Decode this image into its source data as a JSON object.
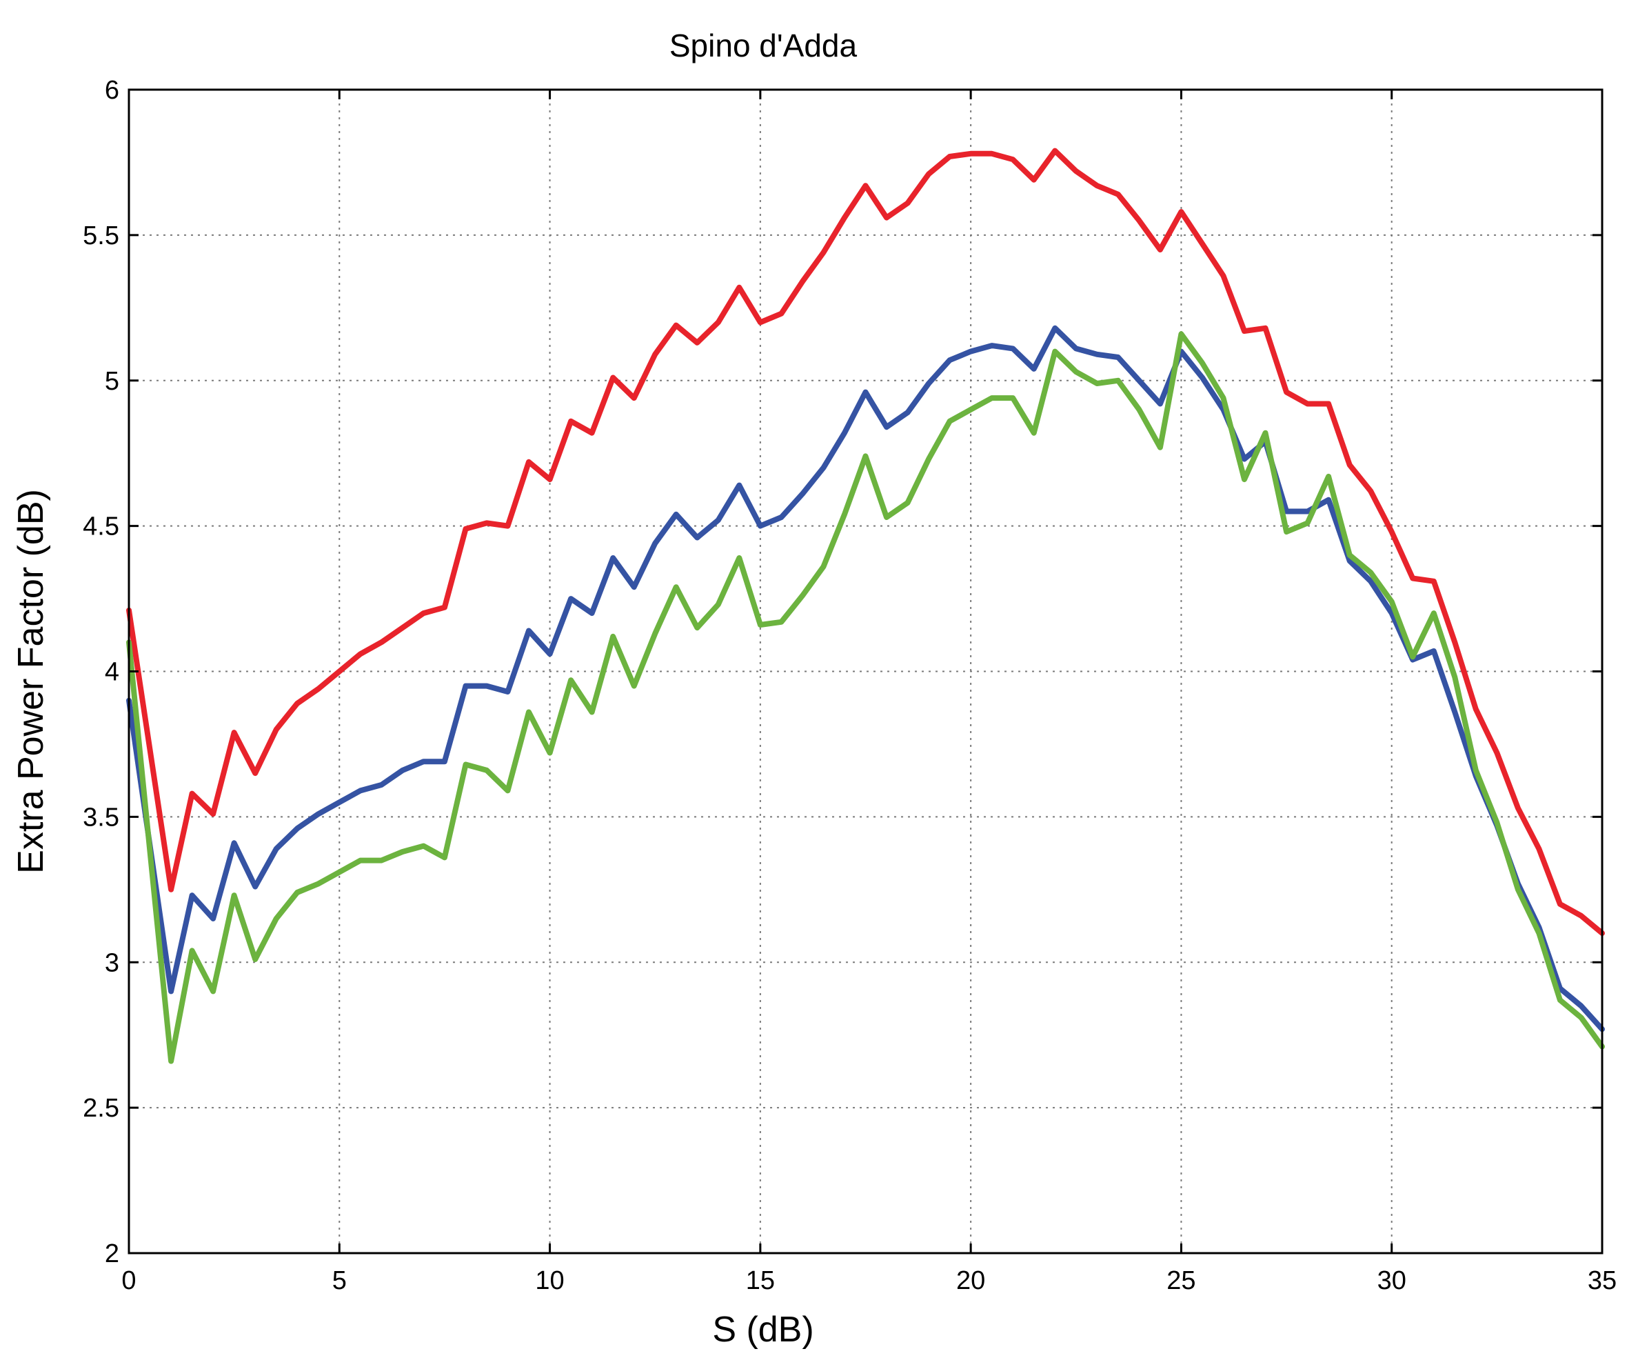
{
  "chart_data": {
    "type": "line",
    "title": "Spino d'Adda",
    "xlabel": "S (dB)",
    "ylabel": "Extra Power Factor (dB)",
    "xlim": [
      0,
      35
    ],
    "ylim": [
      2,
      6
    ],
    "xticks": [
      "0",
      "5",
      "10",
      "15",
      "20",
      "25",
      "30",
      "35"
    ],
    "yticks": [
      "2",
      "2.5",
      "3",
      "3.5",
      "4",
      "4.5",
      "5",
      "5.5",
      "6"
    ],
    "grid": true,
    "x": [
      0,
      1,
      1.5,
      2,
      2.5,
      3,
      3.5,
      4,
      4.5,
      5,
      5.5,
      6,
      6.5,
      7,
      7.5,
      8,
      8.5,
      9,
      9.5,
      10,
      10.5,
      11,
      11.5,
      12,
      12.5,
      13,
      13.5,
      14,
      14.5,
      15,
      15.5,
      16,
      16.5,
      17,
      17.5,
      18,
      18.5,
      19,
      19.5,
      20,
      20.5,
      21,
      21.5,
      22,
      22.5,
      23,
      23.5,
      24,
      24.5,
      25,
      25.5,
      26,
      26.5,
      27,
      27.5,
      28,
      28.5,
      29,
      29.5,
      30,
      30.5,
      31,
      31.5,
      32,
      32.5,
      33,
      33.5,
      34,
      34.5,
      35
    ],
    "series": [
      {
        "color": "#e8232b",
        "values": [
          4.21,
          3.25,
          3.58,
          3.51,
          3.79,
          3.65,
          3.8,
          3.89,
          3.94,
          4.0,
          4.06,
          4.1,
          4.15,
          4.2,
          4.22,
          4.49,
          4.51,
          4.5,
          4.72,
          4.66,
          4.86,
          4.82,
          5.01,
          4.94,
          5.09,
          5.19,
          5.13,
          5.2,
          5.32,
          5.2,
          5.23,
          5.34,
          5.44,
          5.56,
          5.67,
          5.56,
          5.61,
          5.71,
          5.77,
          5.78,
          5.78,
          5.76,
          5.69,
          5.79,
          5.72,
          5.67,
          5.64,
          5.55,
          5.45,
          5.58,
          5.47,
          5.36,
          5.17,
          5.18,
          4.96,
          4.92,
          4.92,
          4.71,
          4.62,
          4.48,
          4.32,
          4.31,
          4.1,
          3.87,
          3.72,
          3.53,
          3.39,
          3.2,
          3.16,
          3.1
        ]
      },
      {
        "color": "#3553a3",
        "values": [
          3.9,
          2.9,
          3.23,
          3.15,
          3.41,
          3.26,
          3.39,
          3.46,
          3.51,
          3.55,
          3.59,
          3.61,
          3.66,
          3.69,
          3.69,
          3.95,
          3.95,
          3.93,
          4.14,
          4.06,
          4.25,
          4.2,
          4.39,
          4.29,
          4.44,
          4.54,
          4.46,
          4.52,
          4.64,
          4.5,
          4.53,
          4.61,
          4.7,
          4.82,
          4.96,
          4.84,
          4.89,
          4.99,
          5.07,
          5.1,
          5.12,
          5.11,
          5.04,
          5.18,
          5.11,
          5.09,
          5.08,
          5.0,
          4.92,
          5.1,
          5.01,
          4.9,
          4.73,
          4.79,
          4.55,
          4.55,
          4.59,
          4.38,
          4.31,
          4.2,
          4.04,
          4.07,
          3.86,
          3.64,
          3.47,
          3.27,
          3.12,
          2.91,
          2.85,
          2.77
        ]
      },
      {
        "color": "#6cb33f",
        "values": [
          4.1,
          2.66,
          3.04,
          2.9,
          3.23,
          3.01,
          3.15,
          3.24,
          3.27,
          3.31,
          3.35,
          3.35,
          3.38,
          3.4,
          3.36,
          3.68,
          3.66,
          3.59,
          3.86,
          3.72,
          3.97,
          3.86,
          4.12,
          3.95,
          4.13,
          4.29,
          4.15,
          4.23,
          4.39,
          4.16,
          4.17,
          4.26,
          4.36,
          4.54,
          4.74,
          4.53,
          4.58,
          4.73,
          4.86,
          4.9,
          4.94,
          4.94,
          4.82,
          5.1,
          5.03,
          4.99,
          5.0,
          4.9,
          4.77,
          5.16,
          5.06,
          4.94,
          4.66,
          4.82,
          4.48,
          4.51,
          4.67,
          4.4,
          4.34,
          4.24,
          4.05,
          4.2,
          3.98,
          3.66,
          3.48,
          3.25,
          3.1,
          2.87,
          2.81,
          2.71
        ]
      }
    ]
  }
}
